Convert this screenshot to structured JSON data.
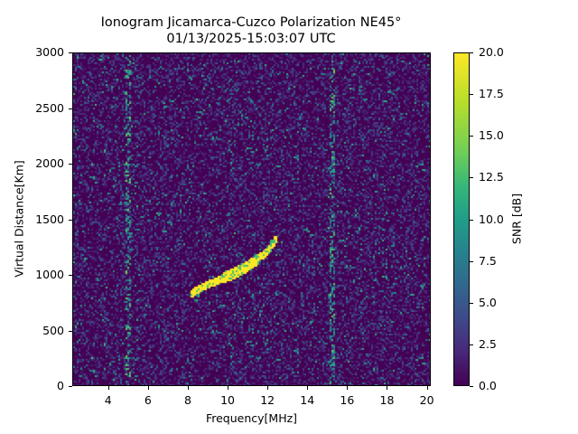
{
  "figure": {
    "title_line1": "Ionogram Jicamarca-Cuzco Polarization NE45°",
    "title_line2": "01/13/2025-15:03:07 UTC",
    "xlabel": "Frequency[MHz]",
    "ylabel": "Virtual Distance[Km]",
    "colorbar_label": "SNR [dB]",
    "x_ticks": [
      "4",
      "6",
      "8",
      "10",
      "12",
      "14",
      "16",
      "18",
      "20"
    ],
    "y_ticks": [
      "0",
      "500",
      "1000",
      "1500",
      "2000",
      "2500",
      "3000"
    ],
    "c_ticks": [
      "0.0",
      "2.5",
      "5.0",
      "7.5",
      "10.0",
      "12.5",
      "15.0",
      "17.5",
      "20.0"
    ]
  },
  "chart_data": {
    "type": "heatmap",
    "title": "Ionogram Jicamarca-Cuzco Polarization NE45° 01/13/2025-15:03:07 UTC",
    "xlabel": "Frequency[MHz]",
    "ylabel": "Virtual Distance[Km]",
    "colorbar": {
      "label": "SNR [dB]",
      "range": [
        0,
        20
      ],
      "colormap": "viridis"
    },
    "xlim": [
      2.2,
      20.2
    ],
    "ylim": [
      0,
      3000
    ],
    "x_ticks": [
      4,
      6,
      8,
      10,
      12,
      14,
      16,
      18,
      20
    ],
    "y_ticks": [
      0,
      500,
      1000,
      1500,
      2000,
      2500,
      3000
    ],
    "c_ticks": [
      0.0,
      2.5,
      5.0,
      7.5,
      10.0,
      12.5,
      15.0,
      17.5,
      20.0
    ],
    "background": "noise mostly 0-5 dB",
    "trace": {
      "description": "ionospheric echo trace, high SNR (~20 dB)",
      "points": [
        {
          "freq": 8.1,
          "range": 830
        },
        {
          "freq": 8.5,
          "range": 880
        },
        {
          "freq": 9.0,
          "range": 920
        },
        {
          "freq": 9.5,
          "range": 960
        },
        {
          "freq": 10.0,
          "range": 1000
        },
        {
          "freq": 10.5,
          "range": 1040
        },
        {
          "freq": 11.0,
          "range": 1090
        },
        {
          "freq": 11.5,
          "range": 1150
        },
        {
          "freq": 12.0,
          "range": 1230
        },
        {
          "freq": 12.4,
          "range": 1330
        }
      ]
    },
    "interference_bands_mhz": [
      5.0,
      15.3
    ]
  }
}
